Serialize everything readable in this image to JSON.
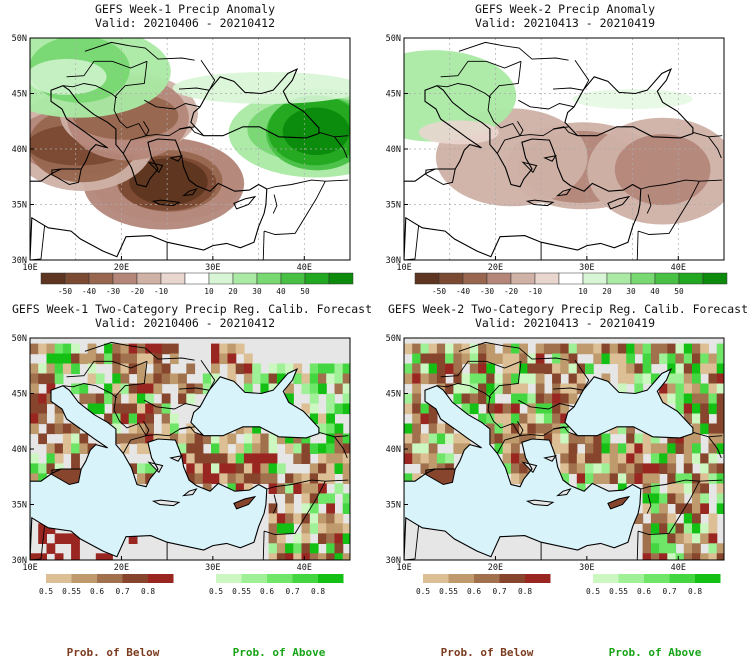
{
  "colors": {
    "anom_neg": [
      "#5e3520",
      "#7b4a33",
      "#98664e",
      "#b4877a",
      "#cfb1a6",
      "#e9d6cf"
    ],
    "anom_pos": [
      "#d8f5d6",
      "#aaeaa4",
      "#78d872",
      "#48c044",
      "#22a820",
      "#0c8a0c"
    ],
    "prob_below": [
      "#dcbf94",
      "#bf9a6c",
      "#a0714c",
      "#86452c",
      "#9a2622"
    ],
    "prob_above": [
      "#cdf7c0",
      "#9ff097",
      "#6fe668",
      "#44d640",
      "#14c014"
    ],
    "sea": "#d8f3fa",
    "nodata": "#e6e6e6",
    "footer_below": "#7b3b1f",
    "footer_above": "#18a518"
  },
  "chart_data": [
    {
      "type": "heatmap",
      "title": "GEFS Week-1 Precip Anomaly",
      "subtitle": "Valid: 20210406 - 20210412",
      "x_ticks": [
        "10E",
        "20E",
        "30E",
        "40E"
      ],
      "y_ticks": [
        "50N",
        "45N",
        "40N",
        "35N",
        "30N"
      ],
      "xlim": [
        10,
        45
      ],
      "ylim": [
        30,
        50
      ],
      "grid": true,
      "colorbar": [
        "-50",
        "-40",
        "-30",
        "-20",
        "-10",
        "10",
        "20",
        "30",
        "40",
        "50"
      ],
      "anomaly_features": [
        {
          "lon": 25,
          "lat": 37,
          "value": -50
        },
        {
          "lon": 15.5,
          "lat": 40.5,
          "value": -40
        },
        {
          "lon": 20.5,
          "lat": 43,
          "value": -30
        },
        {
          "lon": 41.5,
          "lat": 41.5,
          "value": 50
        },
        {
          "lon": 15.5,
          "lat": 47,
          "value": 20
        }
      ]
    },
    {
      "type": "heatmap",
      "title": "GEFS Week-2 Precip Anomaly",
      "subtitle": "Valid: 20210413 - 20210419",
      "x_ticks": [
        "10E",
        "20E",
        "30E",
        "40E"
      ],
      "y_ticks": [
        "50N",
        "45N",
        "40N",
        "35N",
        "30N"
      ],
      "xlim": [
        10,
        45
      ],
      "ylim": [
        30,
        50
      ],
      "grid": true,
      "colorbar": [
        "-50",
        "-40",
        "-30",
        "-20",
        "-10",
        "10",
        "20",
        "30",
        "40",
        "50"
      ],
      "anomaly_features": [
        {
          "lon": 29.5,
          "lat": 38.5,
          "value": -20
        },
        {
          "lon": 38.5,
          "lat": 38,
          "value": -20
        },
        {
          "lon": 22,
          "lat": 39,
          "value": -10
        },
        {
          "lon": 13,
          "lat": 45,
          "value": 10
        }
      ]
    },
    {
      "type": "heatmap",
      "title": "GEFS Week-1 Two-Category Precip Reg. Calib. Forecast",
      "subtitle": "Valid: 20210406 - 20210412",
      "x_ticks": [
        "10E",
        "20E",
        "30E",
        "40E"
      ],
      "y_ticks": [
        "50N",
        "45N",
        "40N",
        "35N",
        "30N"
      ],
      "xlim": [
        10,
        45
      ],
      "ylim": [
        30,
        50
      ],
      "grid": false,
      "colorbar_below": [
        "0.5",
        "0.55",
        "0.6",
        "0.7",
        "0.8"
      ],
      "colorbar_above": [
        "0.5",
        "0.55",
        "0.6",
        "0.7",
        "0.8"
      ],
      "dominant_category": "below",
      "footer_below": "Prob. of Below",
      "footer_above": "Prob. of Above"
    },
    {
      "type": "heatmap",
      "title": "GEFS Week-2 Two-Category Precip Reg. Calib. Forecast",
      "subtitle": "Valid: 20210413 - 20210419",
      "x_ticks": [
        "10E",
        "20E",
        "30E",
        "40E"
      ],
      "y_ticks": [
        "50N",
        "45N",
        "40N",
        "35N",
        "30N"
      ],
      "xlim": [
        10,
        45
      ],
      "ylim": [
        30,
        50
      ],
      "grid": false,
      "colorbar_below": [
        "0.5",
        "0.55",
        "0.6",
        "0.7",
        "0.8"
      ],
      "colorbar_above": [
        "0.5",
        "0.55",
        "0.6",
        "0.7",
        "0.8"
      ],
      "dominant_category": "mixed",
      "footer_below": "Prob. of Below",
      "footer_above": "Prob. of Above"
    }
  ]
}
